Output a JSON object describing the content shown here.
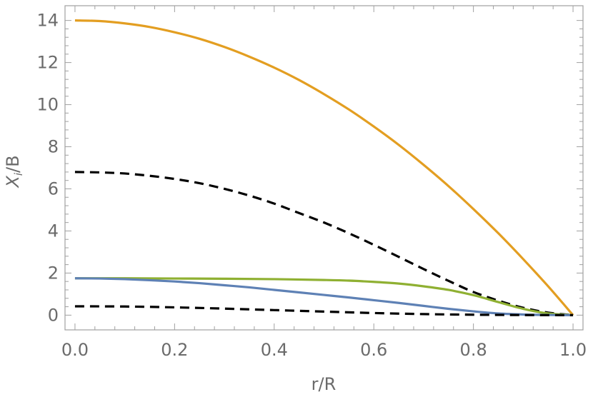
{
  "chart_data": {
    "type": "line",
    "title": "",
    "xlabel": "r/R",
    "ylabel_main": "X",
    "ylabel_sub": "i",
    "ylabel_tail": "/B",
    "xlim": [
      -0.02,
      1.02
    ],
    "ylim": [
      -0.7,
      14.7
    ],
    "x_ticks": [
      "0.0",
      "0.2",
      "0.4",
      "0.6",
      "0.8",
      "1.0"
    ],
    "x_tick_values": [
      0.0,
      0.2,
      0.4,
      0.6,
      0.8,
      1.0
    ],
    "y_ticks": [
      "0",
      "2",
      "4",
      "6",
      "8",
      "10",
      "12",
      "14"
    ],
    "y_tick_values": [
      0,
      2,
      4,
      6,
      8,
      10,
      12,
      14
    ],
    "grid": false,
    "legend": "none",
    "series": [
      {
        "color": "#e39e21",
        "dash": "solid",
        "x": [
          0,
          0.05,
          0.1,
          0.15,
          0.2,
          0.25,
          0.3,
          0.35,
          0.4,
          0.45,
          0.5,
          0.55,
          0.6,
          0.65,
          0.7,
          0.75,
          0.8,
          0.85,
          0.9,
          0.95,
          1.0
        ],
        "y": [
          14.0,
          13.97,
          13.86,
          13.69,
          13.44,
          13.13,
          12.74,
          12.28,
          11.76,
          11.17,
          10.5,
          9.77,
          8.96,
          8.09,
          7.14,
          6.13,
          5.04,
          3.89,
          2.66,
          1.37,
          0.0
        ]
      },
      {
        "color": "#000000",
        "dash": "dashed",
        "x": [
          0,
          0.05,
          0.1,
          0.15,
          0.2,
          0.25,
          0.3,
          0.35,
          0.4,
          0.45,
          0.5,
          0.55,
          0.6,
          0.65,
          0.7,
          0.75,
          0.8,
          0.85,
          0.9,
          0.95,
          1.0
        ],
        "y": [
          6.8,
          6.78,
          6.73,
          6.62,
          6.47,
          6.27,
          6.0,
          5.68,
          5.3,
          4.85,
          4.4,
          3.89,
          3.34,
          2.77,
          2.19,
          1.63,
          1.1,
          0.69,
          0.35,
          0.12,
          0.0
        ]
      },
      {
        "color": "#8fb032",
        "dash": "solid",
        "x": [
          0,
          0.1,
          0.2,
          0.3,
          0.4,
          0.5,
          0.55,
          0.6,
          0.65,
          0.7,
          0.75,
          0.8,
          0.85,
          0.9,
          0.95,
          1.0
        ],
        "y": [
          1.75,
          1.75,
          1.74,
          1.73,
          1.71,
          1.67,
          1.64,
          1.58,
          1.5,
          1.37,
          1.2,
          0.95,
          0.62,
          0.3,
          0.08,
          0.0
        ]
      },
      {
        "color": "#5e81b5",
        "dash": "solid",
        "x": [
          0,
          0.05,
          0.1,
          0.15,
          0.2,
          0.25,
          0.3,
          0.35,
          0.4,
          0.45,
          0.5,
          0.55,
          0.6,
          0.65,
          0.7,
          0.75,
          0.8,
          0.85,
          0.9,
          0.95,
          1.0
        ],
        "y": [
          1.75,
          1.74,
          1.71,
          1.66,
          1.6,
          1.52,
          1.42,
          1.32,
          1.2,
          1.08,
          0.96,
          0.84,
          0.71,
          0.58,
          0.44,
          0.3,
          0.18,
          0.08,
          0.03,
          0.01,
          0.0
        ]
      },
      {
        "color": "#000000",
        "dash": "dashed",
        "x": [
          0,
          0.1,
          0.2,
          0.3,
          0.4,
          0.5,
          0.6,
          0.7,
          0.8,
          0.9,
          1.0
        ],
        "y": [
          0.42,
          0.41,
          0.37,
          0.31,
          0.24,
          0.17,
          0.1,
          0.05,
          0.02,
          0.005,
          0.0
        ]
      }
    ]
  }
}
